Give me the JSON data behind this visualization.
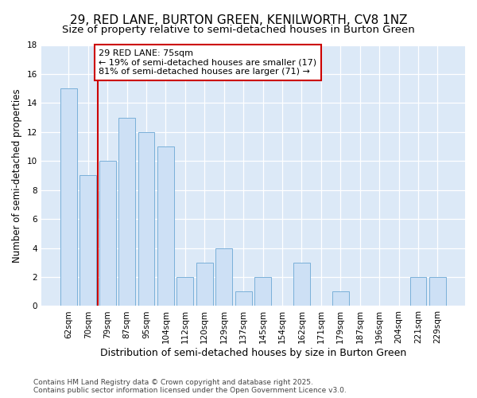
{
  "title": "29, RED LANE, BURTON GREEN, KENILWORTH, CV8 1NZ",
  "subtitle": "Size of property relative to semi-detached houses in Burton Green",
  "xlabel": "Distribution of semi-detached houses by size in Burton Green",
  "ylabel": "Number of semi-detached properties",
  "categories": [
    "62sqm",
    "70sqm",
    "79sqm",
    "87sqm",
    "95sqm",
    "104sqm",
    "112sqm",
    "120sqm",
    "129sqm",
    "137sqm",
    "145sqm",
    "154sqm",
    "162sqm",
    "171sqm",
    "179sqm",
    "187sqm",
    "196sqm",
    "204sqm",
    "221sqm",
    "229sqm"
  ],
  "values": [
    15,
    9,
    10,
    13,
    12,
    11,
    2,
    3,
    4,
    1,
    2,
    0,
    3,
    0,
    1,
    0,
    0,
    0,
    2,
    2
  ],
  "bar_color": "#cde0f5",
  "bar_edge_color": "#7ab0d9",
  "vline_x_pos": 1.5,
  "vline_color": "#cc0000",
  "annotation_line1": "29 RED LANE: 75sqm",
  "annotation_line2": "← 19% of semi-detached houses are smaller (17)",
  "annotation_line3": "81% of semi-detached houses are larger (71) →",
  "annotation_box_color": "#ffffff",
  "annotation_box_edge_color": "#cc0000",
  "ylim": [
    0,
    18
  ],
  "yticks": [
    0,
    2,
    4,
    6,
    8,
    10,
    12,
    14,
    16,
    18
  ],
  "plot_bg_color": "#dce9f7",
  "fig_bg_color": "#ffffff",
  "grid_color": "#ffffff",
  "footer": "Contains HM Land Registry data © Crown copyright and database right 2025.\nContains public sector information licensed under the Open Government Licence v3.0.",
  "title_fontsize": 11,
  "subtitle_fontsize": 9.5,
  "xlabel_fontsize": 9,
  "ylabel_fontsize": 8.5,
  "tick_fontsize": 7.5,
  "annotation_fontsize": 8,
  "footer_fontsize": 6.5
}
